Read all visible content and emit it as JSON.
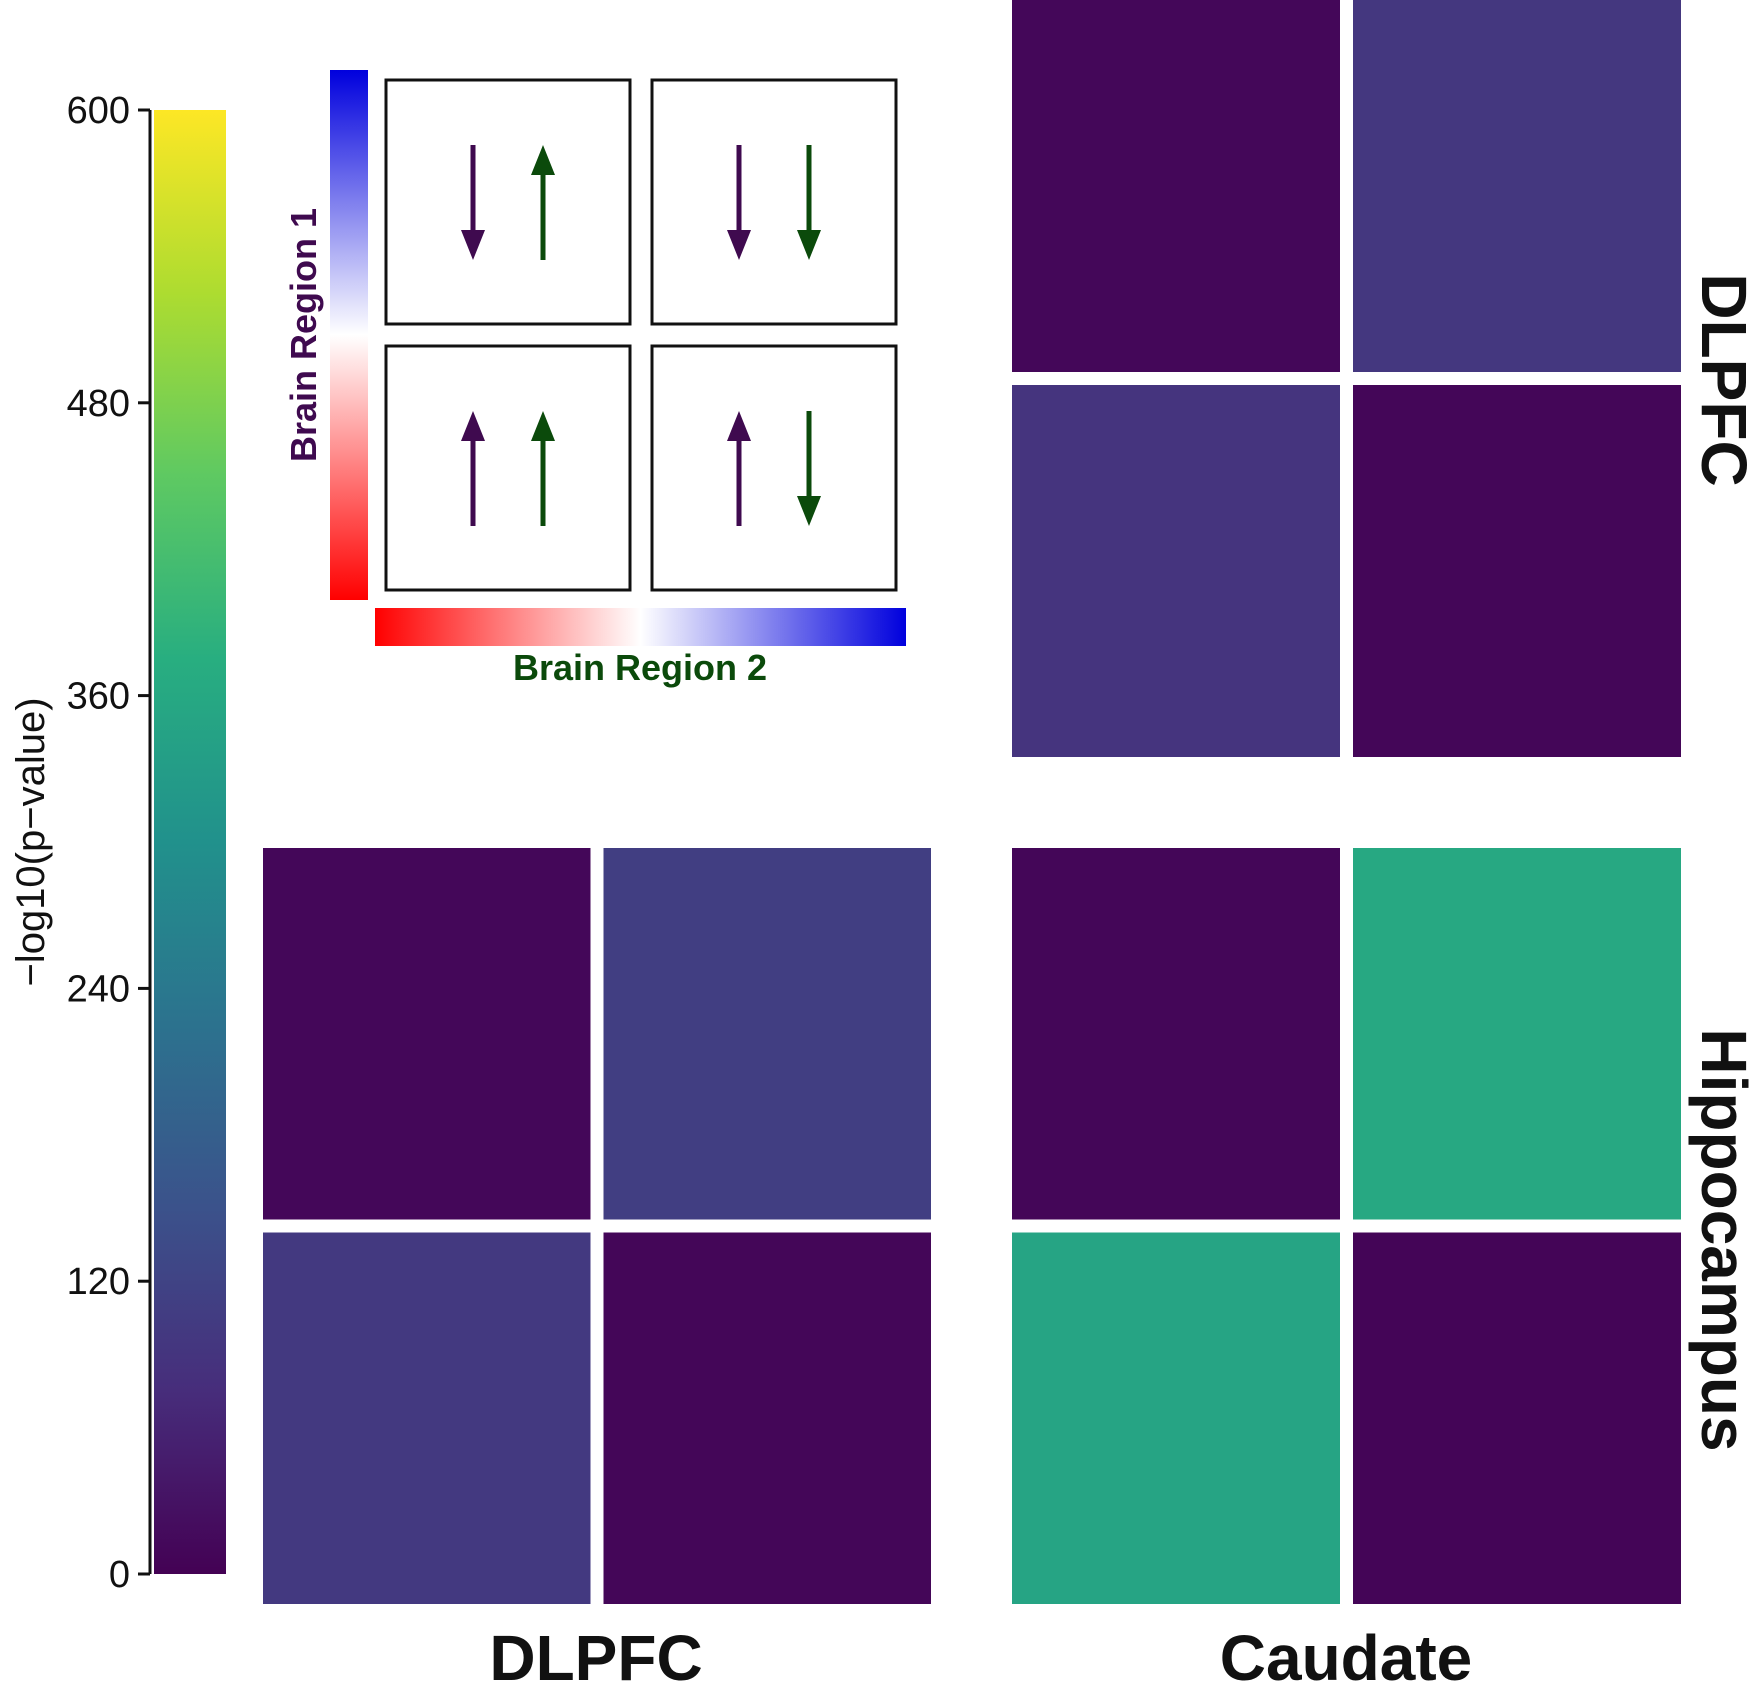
{
  "chart_data": {
    "type": "heatmap",
    "colorbar": {
      "title": "−log10(p−value)",
      "ticks": [
        0,
        120,
        240,
        360,
        480,
        600
      ],
      "tick_labels": [
        "0",
        "120",
        "240",
        "360",
        "480",
        "600"
      ],
      "range": [
        0,
        600
      ],
      "colormap": "viridis",
      "colors": [
        "#440154",
        "#472d7b",
        "#3b528b",
        "#2c728e",
        "#21918c",
        "#28ae80",
        "#5ec962",
        "#addc30",
        "#fde725"
      ]
    },
    "column_labels": [
      "DLPFC",
      "Caudate"
    ],
    "row_labels": [
      "DLPFC",
      "Hippocampus"
    ],
    "quadrant_order": [
      "top-left",
      "top-right",
      "bottom-left",
      "bottom-right"
    ],
    "panels": [
      {
        "row": "DLPFC",
        "column": "Caudate",
        "quadrant_values": [
          10,
          95,
          90,
          8
        ]
      },
      {
        "row": "Hippocampus",
        "column": "DLPFC",
        "quadrant_values": [
          10,
          110,
          100,
          8
        ]
      },
      {
        "row": "Hippocampus",
        "column": "Caudate",
        "quadrant_values": [
          8,
          360,
          350,
          6
        ]
      }
    ],
    "direction_legend": {
      "y_label": "Brain Region 1",
      "x_label": "Brain Region 2",
      "region1_color": "#3f0a4f",
      "region2_color": "#0b4a0b",
      "gradient_colors": [
        "#ff0000",
        "#ffffff",
        "#0000dd"
      ],
      "cells": [
        {
          "quadrant": "top-left",
          "region1": "down",
          "region2": "up"
        },
        {
          "quadrant": "top-right",
          "region1": "down",
          "region2": "down"
        },
        {
          "quadrant": "bottom-left",
          "region1": "up",
          "region2": "up"
        },
        {
          "quadrant": "bottom-right",
          "region1": "up",
          "region2": "down"
        }
      ]
    }
  }
}
